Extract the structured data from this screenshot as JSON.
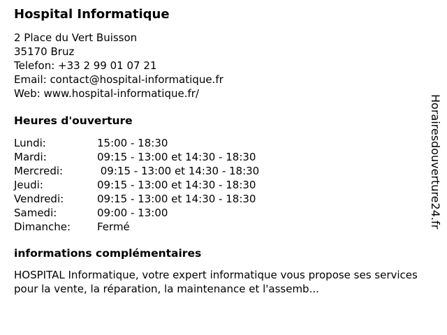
{
  "title": "Hospital Informatique",
  "address": [
    "2 Place du Vert Buisson",
    "35170 Bruz",
    "Telefon: +33 2 99 01 07 21",
    "Email: contact@hospital-informatique.fr",
    "Web: www.hospital-informatique.fr/"
  ],
  "hours_heading": "Heures d'ouverture",
  "hours": [
    {
      "day": "Lundi:",
      "time": "15:00 - 18:30"
    },
    {
      "day": "Mardi:",
      "time": "09:15 - 13:00 et 14:30 - 18:30"
    },
    {
      "day": "Mercredi:",
      "time": " 09:15 - 13:00 et 14:30 - 18:30"
    },
    {
      "day": "Jeudi:",
      "time": "09:15 - 13:00 et 14:30 - 18:30"
    },
    {
      "day": "Vendredi:",
      "time": "09:15 - 13:00 et 14:30 - 18:30"
    },
    {
      "day": "Samedi:",
      "time": "09:00 - 13:00"
    },
    {
      "day": "Dimanche:",
      "time": "Fermé"
    }
  ],
  "info_heading": "informations complémentaires",
  "info_text": "HOSPITAL Informatique, votre expert informatique vous propose ses services pour la vente, la réparation, la maintenance et l'assemb...",
  "side_watermark": "Horairesdouverture24.fr"
}
